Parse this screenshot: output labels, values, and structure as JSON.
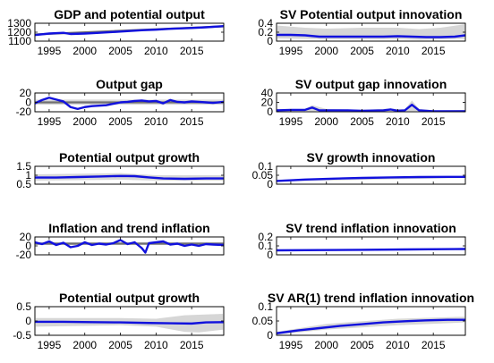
{
  "colors": {
    "series": "#1111dd",
    "trend": "#707070",
    "band": "#d6d6d6"
  },
  "chart_data": [
    {
      "type": "line",
      "title": "GDP and potential output",
      "xlim": [
        1993,
        2019.5
      ],
      "ylim": [
        1100,
        1300
      ],
      "yticks": [
        "1100",
        "1200",
        "1300"
      ],
      "xticks": [
        "1995",
        "2000",
        "2005",
        "2010",
        "2015"
      ],
      "band": {
        "x": [
          1993,
          2019.5
        ],
        "lower": [
          1168,
          1258
        ],
        "upper": [
          1182,
          1272
        ]
      },
      "series": [
        {
          "role": "trend",
          "x": [
            1993,
            2019.5
          ],
          "values": [
            1175,
            1265
          ]
        },
        {
          "role": "main",
          "x": [
            1993,
            1995,
            1997,
            1998,
            2000,
            2002,
            2005,
            2008,
            2010,
            2012,
            2015,
            2017,
            2019.5
          ],
          "values": [
            1168,
            1185,
            1193,
            1180,
            1185,
            1193,
            1207,
            1222,
            1228,
            1238,
            1247,
            1255,
            1268
          ]
        }
      ]
    },
    {
      "type": "line",
      "title": "SV Potential output innovation",
      "xlim": [
        1993,
        2019.5
      ],
      "ylim": [
        0,
        0.4
      ],
      "yticks": [
        "0",
        "0.2",
        "0.4"
      ],
      "xticks": [
        "1995",
        "2000",
        "2005",
        "2010",
        "2015"
      ],
      "band": {
        "x": [
          1993,
          1997,
          2000,
          2005,
          2010,
          2013,
          2016,
          2019.5
        ],
        "lower": [
          0.06,
          0.05,
          0.04,
          0.04,
          0.04,
          0.03,
          0.04,
          0.05
        ],
        "upper": [
          0.35,
          0.3,
          0.28,
          0.3,
          0.3,
          0.27,
          0.3,
          0.38
        ]
      },
      "series": [
        {
          "role": "main",
          "x": [
            1993,
            1995,
            1997,
            1999,
            2001,
            2003,
            2005,
            2008,
            2010,
            2012,
            2014,
            2016,
            2018,
            2019.5
          ],
          "values": [
            0.14,
            0.14,
            0.13,
            0.1,
            0.1,
            0.1,
            0.1,
            0.1,
            0.11,
            0.1,
            0.09,
            0.09,
            0.1,
            0.13
          ]
        }
      ]
    },
    {
      "type": "line",
      "title": "Output gap",
      "xlim": [
        1993,
        2019.5
      ],
      "ylim": [
        -20,
        20
      ],
      "yticks": [
        "-20",
        "0",
        "20"
      ],
      "xticks": [
        "1995",
        "2000",
        "2005",
        "2010",
        "2015"
      ],
      "band": {
        "x": [
          1993,
          2019.5
        ],
        "lower": [
          -5,
          -5
        ],
        "upper": [
          6,
          6
        ]
      },
      "series": [
        {
          "role": "trend",
          "x": [
            1993,
            2019.5
          ],
          "values": [
            0,
            0
          ]
        },
        {
          "role": "main",
          "x": [
            1993,
            1994,
            1995,
            1996,
            1997,
            1998,
            1999,
            2000,
            2001,
            2002,
            2003,
            2004,
            2005,
            2006,
            2007,
            2008,
            2009,
            2010,
            2011,
            2012,
            2013,
            2014,
            2015,
            2016,
            2017,
            2018,
            2019.5
          ],
          "values": [
            -2,
            5,
            10,
            6,
            2,
            -10,
            -14,
            -10,
            -8,
            -7,
            -6,
            -3,
            0,
            1,
            3,
            4,
            2,
            3,
            -2,
            5,
            1,
            0,
            2,
            1,
            0,
            -1,
            1
          ]
        }
      ]
    },
    {
      "type": "line",
      "title": "SV output gap innovation",
      "xlim": [
        1993,
        2019.5
      ],
      "ylim": [
        0,
        40
      ],
      "yticks": [
        "0",
        "20",
        "40"
      ],
      "xticks": [
        "1995",
        "2000",
        "2005",
        "2010",
        "2015"
      ],
      "band": {
        "x": [
          1993,
          1997,
          1998,
          2000,
          2005,
          2009,
          2011,
          2012,
          2013,
          2015,
          2019.5
        ],
        "lower": [
          0,
          0,
          0,
          0,
          0,
          0,
          0,
          0,
          0,
          0,
          0
        ],
        "upper": [
          6,
          6,
          14,
          6,
          4,
          7,
          5,
          24,
          6,
          3,
          4
        ]
      },
      "series": [
        {
          "role": "main",
          "x": [
            1993,
            1995,
            1997,
            1998,
            1999,
            2001,
            2003,
            2005,
            2008,
            2009,
            2010,
            2011,
            2012,
            2013,
            2015,
            2017,
            2019.5
          ],
          "values": [
            3,
            4,
            4,
            9,
            3,
            3,
            3,
            2,
            3,
            5,
            2,
            3,
            15,
            3,
            1,
            1,
            1
          ]
        }
      ]
    },
    {
      "type": "line",
      "title": "Potential output growth",
      "xlim": [
        1993,
        2019.5
      ],
      "ylim": [
        0.5,
        1.5
      ],
      "yticks": [
        "0.5",
        "1",
        "1.5"
      ],
      "xticks": [],
      "band": {
        "x": [
          1993,
          2005,
          2010,
          2019.5
        ],
        "lower": [
          0.7,
          0.75,
          0.7,
          0.7
        ],
        "upper": [
          1.05,
          1.12,
          1.0,
          1.0
        ]
      },
      "series": [
        {
          "role": "main",
          "x": [
            1993,
            1996,
            1999,
            2002,
            2005,
            2007,
            2009,
            2011,
            2014,
            2017,
            2019.5
          ],
          "values": [
            0.87,
            0.87,
            0.9,
            0.93,
            0.96,
            0.95,
            0.88,
            0.82,
            0.8,
            0.82,
            0.82
          ]
        }
      ]
    },
    {
      "type": "line",
      "title": "SV growth innovation",
      "xlim": [
        1993,
        2019.5
      ],
      "ylim": [
        0,
        0.1
      ],
      "yticks": [
        "0",
        "0.05",
        "0.1"
      ],
      "xticks": [],
      "band": {
        "x": [
          1993,
          2019.5
        ],
        "lower": [
          0.015,
          0.035
        ],
        "upper": [
          0.025,
          0.045
        ]
      },
      "series": [
        {
          "role": "main",
          "x": [
            1993,
            1997,
            2001,
            2005,
            2009,
            2013,
            2017,
            2019.5
          ],
          "values": [
            0.018,
            0.026,
            0.031,
            0.035,
            0.038,
            0.04,
            0.041,
            0.041
          ]
        }
      ]
    },
    {
      "type": "line",
      "title": "Inflation and trend inflation",
      "xlim": [
        1993,
        2019.5
      ],
      "ylim": [
        -20,
        20
      ],
      "yticks": [
        "-20",
        "0",
        "20"
      ],
      "xticks": [],
      "band": {
        "x": [
          1993,
          2019.5
        ],
        "lower": [
          2,
          2
        ],
        "upper": [
          8,
          8
        ]
      },
      "series": [
        {
          "role": "trend",
          "x": [
            1993,
            2019.5
          ],
          "values": [
            5,
            5
          ]
        },
        {
          "role": "main",
          "x": [
            1993,
            1994,
            1995,
            1996,
            1997,
            1998,
            1999,
            2000,
            2001,
            2002,
            2003,
            2004,
            2005,
            2006,
            2007,
            2008,
            2008.5,
            2009,
            2010,
            2011,
            2012,
            2013,
            2014,
            2015,
            2016,
            2017,
            2018,
            2019.5
          ],
          "values": [
            8,
            4,
            10,
            2,
            7,
            -3,
            0,
            8,
            2,
            5,
            3,
            6,
            13,
            4,
            8,
            -5,
            -15,
            6,
            8,
            10,
            3,
            5,
            0,
            3,
            0,
            4,
            3,
            2
          ]
        }
      ]
    },
    {
      "type": "line",
      "title": "SV trend inflation innovation",
      "xlim": [
        1993,
        2019.5
      ],
      "ylim": [
        0,
        0.2
      ],
      "yticks": [
        "0",
        "0.1",
        "0.2"
      ],
      "xticks": [],
      "band": {
        "x": [
          1993,
          2019.5
        ],
        "lower": [
          0.04,
          0.055
        ],
        "upper": [
          0.06,
          0.075
        ]
      },
      "series": [
        {
          "role": "main",
          "x": [
            1993,
            1999,
            2005,
            2011,
            2016,
            2019.5
          ],
          "values": [
            0.05,
            0.053,
            0.056,
            0.06,
            0.063,
            0.065
          ]
        }
      ]
    },
    {
      "type": "line",
      "title": "Potential output growth",
      "xlim": [
        1993,
        2019.5
      ],
      "ylim": [
        -0.5,
        0.5
      ],
      "yticks": [
        "-0.5",
        "0",
        "0.5"
      ],
      "xticks": [
        "1995",
        "2000",
        "2005",
        "2010",
        "2015"
      ],
      "band": {
        "x": [
          1993,
          2005,
          2010,
          2014,
          2016,
          2019.5
        ],
        "lower": [
          -0.2,
          -0.15,
          -0.2,
          -0.38,
          -0.4,
          -0.3
        ],
        "upper": [
          0.1,
          0.1,
          0.08,
          0.2,
          0.22,
          0.25
        ]
      },
      "series": [
        {
          "role": "main",
          "x": [
            1993,
            1997,
            2001,
            2005,
            2009,
            2012,
            2015,
            2017,
            2019.5
          ],
          "values": [
            -0.03,
            -0.03,
            -0.04,
            -0.05,
            -0.07,
            -0.08,
            -0.09,
            -0.05,
            -0.04
          ]
        }
      ]
    },
    {
      "type": "line",
      "title": "SV  AR(1) trend inflation innovation",
      "xlim": [
        1993,
        2019.5
      ],
      "ylim": [
        0,
        0.1
      ],
      "yticks": [
        "0",
        "0.05",
        "0.1"
      ],
      "xticks": [
        "1995",
        "2000",
        "2005",
        "2010",
        "2015"
      ],
      "band": {
        "x": [
          1993,
          2000,
          2010,
          2019.5
        ],
        "lower": [
          0.002,
          0.02,
          0.035,
          0.045
        ],
        "upper": [
          0.012,
          0.04,
          0.058,
          0.065
        ]
      },
      "series": [
        {
          "role": "main",
          "x": [
            1993,
            1996,
            1999,
            2002,
            2005,
            2008,
            2011,
            2014,
            2017,
            2019.5
          ],
          "values": [
            0.007,
            0.017,
            0.025,
            0.033,
            0.039,
            0.045,
            0.049,
            0.052,
            0.054,
            0.054
          ]
        }
      ]
    }
  ]
}
